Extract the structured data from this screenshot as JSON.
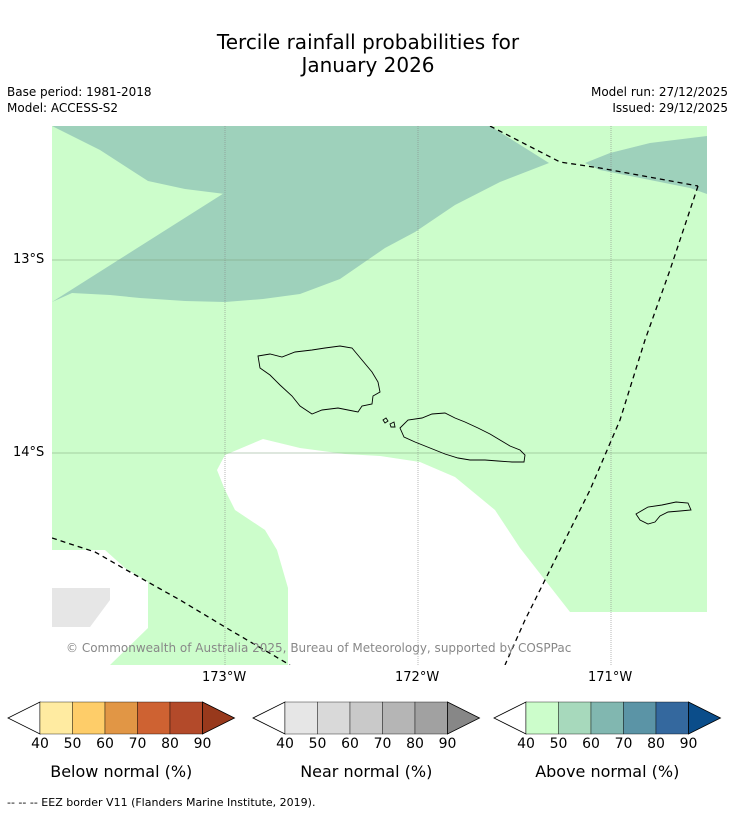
{
  "title": {
    "line1": "Tercile rainfall probabilities for",
    "line2": "January 2026"
  },
  "meta": {
    "base_period": "Base period: 1981-2018",
    "model": "Model: ACCESS-S2",
    "model_run": "Model run: 27/12/2025",
    "issued": "Issued: 29/12/2025"
  },
  "map": {
    "lat_labels": [
      "13°S",
      "14°S"
    ],
    "lon_labels": [
      "173°W",
      "172°W",
      "171°W"
    ],
    "copyright": "© Commonwealth of Australia 2025, Bureau of Meteorology, supported by COSPPac",
    "colors": {
      "above_40_50": "#ccfdcb",
      "above_60_70": "#9ed1bb",
      "near_40_50": "#e6e6e6",
      "no_signal": "#ffffff"
    }
  },
  "legend": [
    {
      "title": "Below normal (%)",
      "ticks": [
        "40",
        "50",
        "60",
        "70",
        "80",
        "90"
      ],
      "colors": [
        "#ffffff",
        "#ffeba1",
        "#fecd69",
        "#e19645",
        "#ce6232",
        "#b34a2a",
        "#98391c"
      ]
    },
    {
      "title": "Near normal (%)",
      "ticks": [
        "40",
        "50",
        "60",
        "70",
        "80",
        "90"
      ],
      "colors": [
        "#ffffff",
        "#e6e6e6",
        "#d9d9d9",
        "#c9c9c9",
        "#b5b5b5",
        "#a1a1a1",
        "#878787"
      ]
    },
    {
      "title": "Above normal (%)",
      "ticks": [
        "40",
        "50",
        "60",
        "70",
        "80",
        "90"
      ],
      "colors": [
        "#ffffff",
        "#ccfdcb",
        "#a7d9bc",
        "#81b7b0",
        "#5b94a6",
        "#34689e",
        "#0b4d8a"
      ]
    }
  ],
  "footnote": "--  --  -- EEZ border V11 (Flanders Marine Institute, 2019)."
}
